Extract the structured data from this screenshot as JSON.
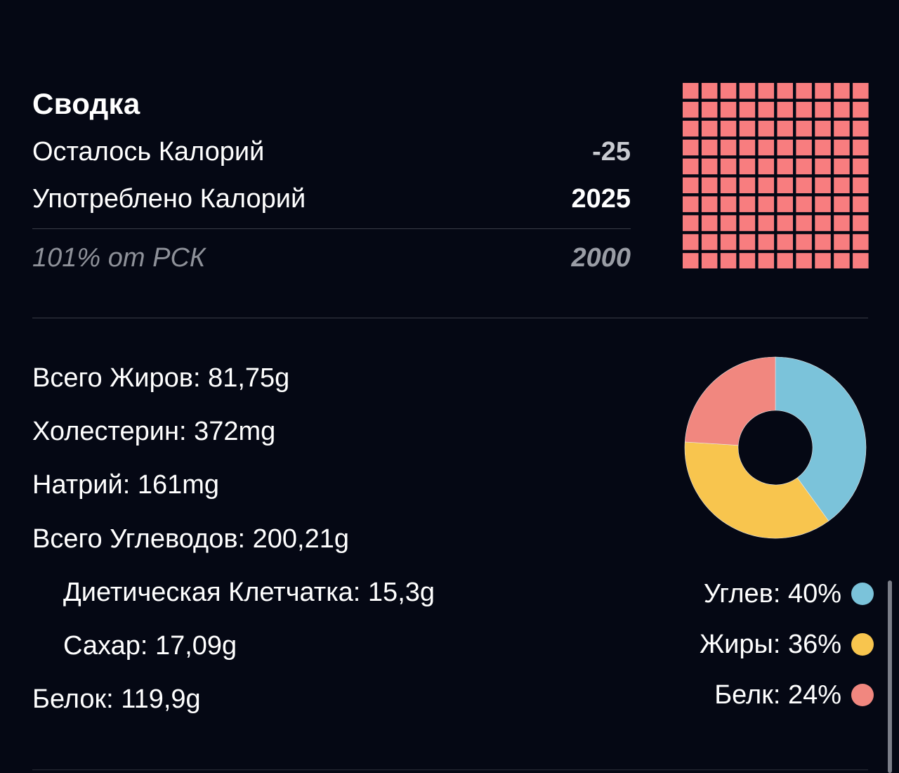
{
  "summary": {
    "title": "Сводка",
    "remaining_label": "Осталось Калорий",
    "remaining_value": "-25",
    "consumed_label": "Употреблено Калорий",
    "consumed_value": "2025",
    "rdi_label": "101% от РСК",
    "rdi_value": "2000"
  },
  "waffle": {
    "color": "#f87d7f",
    "filled_percent": 101
  },
  "nutrients": [
    {
      "label": "Всего Жиров: 81,75g"
    },
    {
      "label": "Холестерин: 372mg"
    },
    {
      "label": "Натрий: 161mg"
    },
    {
      "label": "Всего Углеводов: 200,21g"
    },
    {
      "label": "Диетическая Клетчатка: 15,3g"
    },
    {
      "label": "Сахар: 17,09g"
    },
    {
      "label": "Белок: 119,9g"
    }
  ],
  "chart_data": {
    "type": "pie",
    "categories": [
      "Углев",
      "Жиры",
      "Белк"
    ],
    "values": [
      40,
      36,
      24
    ],
    "colors": [
      "#7bc3da",
      "#f8c54e",
      "#f1877f"
    ],
    "donut": true
  },
  "legend": [
    {
      "label": "Углев: 40%",
      "color": "#7bc3da"
    },
    {
      "label": "Жиры: 36%",
      "color": "#f8c54e"
    },
    {
      "label": "Белк: 24%",
      "color": "#f1877f"
    }
  ],
  "colors": {
    "background": "#050814",
    "muted_text": "#8e9199"
  }
}
